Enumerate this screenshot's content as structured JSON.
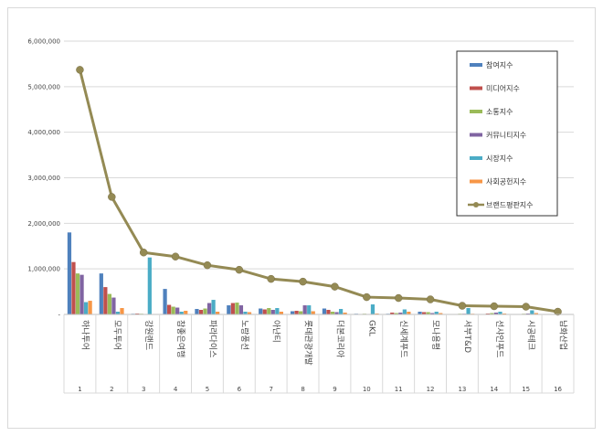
{
  "chart_data": {
    "type": "bar",
    "categories": [
      "하나투어",
      "모두투어",
      "강원랜드",
      "참좋은여행",
      "파라다이스",
      "노랑풍선",
      "아난티",
      "롯데관광개발",
      "더본코리아",
      "GKL",
      "신세계푸드",
      "모나용평",
      "서부T&D",
      "선샤인푸드",
      "시공테크",
      "남화산업"
    ],
    "ranks": [
      "1",
      "2",
      "3",
      "4",
      "5",
      "6",
      "7",
      "8",
      "9",
      "10",
      "11",
      "12",
      "13",
      "14",
      "15",
      "16"
    ],
    "ylim": [
      0,
      6000000
    ],
    "yticks": [
      "-",
      "1,000,000",
      "2,000,000",
      "3,000,000",
      "4,000,000",
      "5,000,000",
      "6,000,000"
    ],
    "ytick_values": [
      0,
      1000000,
      2000000,
      3000000,
      4000000,
      5000000,
      6000000
    ],
    "grid": true,
    "legend_position": "top-right",
    "series": [
      {
        "name": "참여지수",
        "color": "#4f81bd",
        "values": [
          1800000,
          900000,
          15000,
          560000,
          120000,
          200000,
          130000,
          70000,
          130000,
          15000,
          15000,
          60000,
          10000,
          10000,
          10000,
          5000
        ]
      },
      {
        "name": "미디어지수",
        "color": "#c0504d",
        "values": [
          1150000,
          600000,
          20000,
          210000,
          100000,
          250000,
          110000,
          80000,
          100000,
          10000,
          40000,
          50000,
          10000,
          20000,
          10000,
          5000
        ]
      },
      {
        "name": "소통지수",
        "color": "#9bbb59",
        "values": [
          900000,
          450000,
          15000,
          170000,
          130000,
          260000,
          140000,
          70000,
          60000,
          15000,
          30000,
          50000,
          15000,
          30000,
          15000,
          5000
        ]
      },
      {
        "name": "커뮤니티지수",
        "color": "#8064a2",
        "values": [
          870000,
          370000,
          10000,
          150000,
          250000,
          200000,
          100000,
          200000,
          50000,
          10000,
          40000,
          30000,
          15000,
          40000,
          20000,
          5000
        ]
      },
      {
        "name": "시장지수",
        "color": "#4bacc6",
        "values": [
          270000,
          60000,
          1250000,
          60000,
          320000,
          60000,
          140000,
          200000,
          120000,
          220000,
          110000,
          60000,
          140000,
          60000,
          90000,
          5000
        ]
      },
      {
        "name": "사회공헌지수",
        "color": "#f79646",
        "values": [
          300000,
          140000,
          10000,
          80000,
          60000,
          50000,
          60000,
          70000,
          40000,
          20000,
          60000,
          30000,
          15000,
          20000,
          30000,
          5000
        ]
      }
    ],
    "line_series": {
      "name": "브랜드평판지수",
      "color": "#948a54",
      "values": [
        5370000,
        2580000,
        1360000,
        1270000,
        1080000,
        980000,
        780000,
        720000,
        610000,
        380000,
        360000,
        330000,
        190000,
        180000,
        170000,
        60000
      ]
    }
  }
}
